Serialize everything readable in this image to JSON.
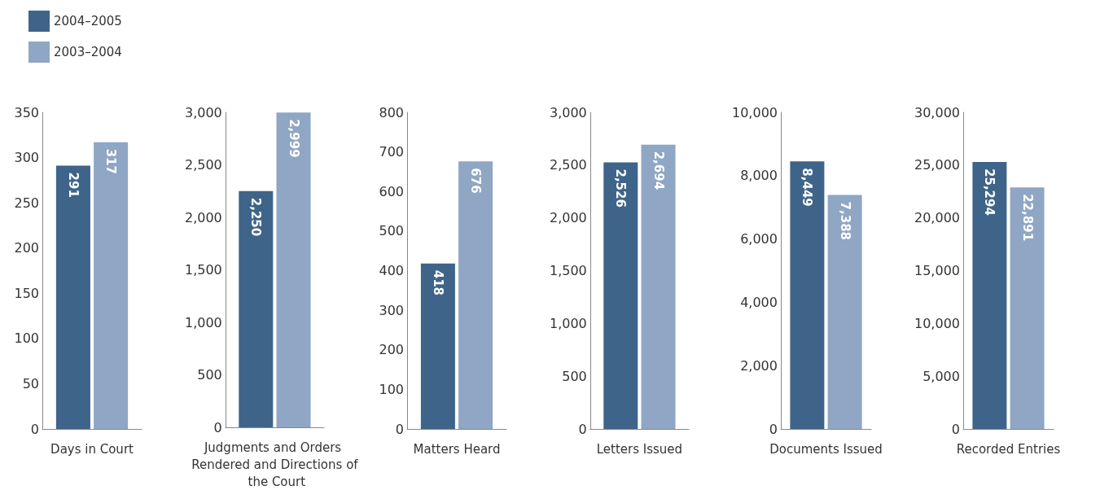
{
  "chart_data": [
    {
      "type": "bar",
      "categories": [
        "Days in Court"
      ],
      "series": [
        {
          "name": "2004–2005",
          "color": "#3f6489",
          "values": [
            291
          ]
        },
        {
          "name": "2003–2004",
          "color": "#8fa6c4",
          "values": [
            317
          ]
        }
      ],
      "ylim": [
        0,
        350
      ],
      "yticks": [
        0,
        50,
        100,
        150,
        200,
        250,
        300,
        350
      ],
      "data_labels": true,
      "legend": "top left"
    },
    {
      "type": "bar",
      "categories": [
        "Judgments and Orders Rendered and Directions of the Court"
      ],
      "series": [
        {
          "color": "#3f6489",
          "values": [
            2250
          ],
          "value_labels": [
            "2,250"
          ]
        },
        {
          "color": "#8fa6c4",
          "values": [
            2999
          ],
          "value_labels": [
            "2,999"
          ]
        }
      ],
      "ylim": [
        0,
        3000
      ],
      "yticks": [
        0,
        500,
        {
          "value": 1000,
          "label": "1,000"
        },
        {
          "value": 1500,
          "label": "1,500"
        },
        {
          "value": 2000,
          "label": "2,000"
        },
        {
          "value": 2500,
          "label": "2,500"
        },
        {
          "value": 3000,
          "label": "3,000"
        }
      ]
    },
    {
      "type": "bar",
      "categories": [
        "Matters Heard"
      ],
      "series": [
        {
          "color": "#3f6489",
          "values": [
            418
          ]
        },
        {
          "color": "#8fa6c4",
          "values": [
            676
          ]
        }
      ],
      "ylim": [
        0,
        800
      ],
      "yticks": [
        0,
        100,
        200,
        300,
        400,
        500,
        600,
        700,
        800
      ],
      "data_labels": true
    },
    {
      "type": "bar",
      "categories": [
        "Letters Issued"
      ],
      "series": [
        {
          "color": "#3f6489",
          "values": [
            2526
          ],
          "value_labels": [
            "2,526"
          ]
        },
        {
          "color": "#8fa6c4",
          "values": [
            2694
          ],
          "value_labels": [
            "2,694"
          ]
        }
      ],
      "ylim": [
        0,
        3000
      ],
      "yticks": [
        0,
        500,
        {
          "value": 1000,
          "label": "1,000"
        },
        {
          "value": 1500,
          "label": "1,500"
        },
        {
          "value": 2000,
          "label": "2,000"
        },
        {
          "value": 2500,
          "label": "2,500"
        },
        {
          "value": 3000,
          "label": "3,000"
        }
      ]
    },
    {
      "type": "bar",
      "categories": [
        "Documents Issued"
      ],
      "series": [
        {
          "color": "#3f6489",
          "values": [
            8449
          ],
          "value_labels": [
            "8,449"
          ]
        },
        {
          "color": "#8fa6c4",
          "values": [
            7388
          ],
          "value_labels": [
            "7,388"
          ]
        }
      ],
      "ylim": [
        0,
        10000
      ],
      "yticks": [
        0,
        {
          "value": 2000,
          "label": "2,000"
        },
        {
          "value": 4000,
          "label": "4,000"
        },
        {
          "value": 6000,
          "label": "6,000"
        },
        {
          "value": 8000,
          "label": "8,000"
        },
        {
          "value": 10000,
          "label": "10,000"
        }
      ]
    },
    {
      "type": "bar",
      "categories": [
        "Recorded Entries"
      ],
      "series": [
        {
          "color": "#3f6489",
          "values": [
            25294
          ],
          "value_labels": [
            "25,294"
          ]
        },
        {
          "color": "#8fa6c4",
          "values": [
            22891
          ],
          "value_labels": [
            "22,891"
          ]
        }
      ],
      "ylim": [
        0,
        30000
      ],
      "yticks": [
        0,
        {
          "value": 5000,
          "label": "5,000"
        },
        {
          "value": 10000,
          "label": "10,000"
        },
        {
          "value": 15000,
          "label": "15,000"
        },
        {
          "value": 20000,
          "label": "20,000"
        },
        {
          "value": 25000,
          "label": "25,000"
        },
        {
          "value": 30000,
          "label": "30,000"
        }
      ]
    }
  ]
}
